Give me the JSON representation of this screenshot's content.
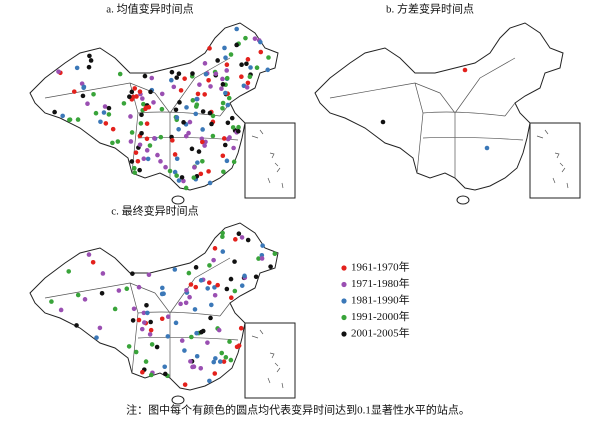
{
  "panels": [
    {
      "title": "a. 均值变异时间点"
    },
    {
      "title": "b. 方差变异时间点"
    },
    {
      "title": "c. 最终变异时间点"
    }
  ],
  "legend": [
    {
      "label": "1961-1970年",
      "color": "#e3211c"
    },
    {
      "label": "1971-1980年",
      "color": "#9a4fb2"
    },
    {
      "label": "1981-1990年",
      "color": "#3b78b8"
    },
    {
      "label": "1991-2000年",
      "color": "#39a43a"
    },
    {
      "label": "2001-2005年",
      "color": "#111111"
    }
  ],
  "note": "注：图中每个有颜色的圆点均代表变异时间达到0.1显著性水平的站点。"
}
